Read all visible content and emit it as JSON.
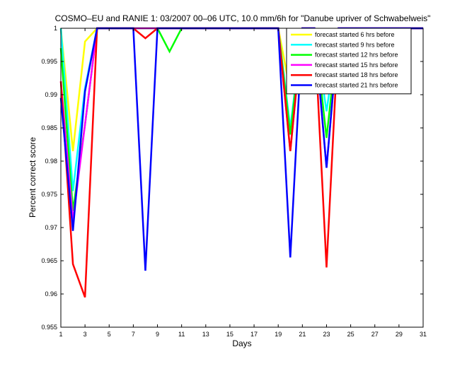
{
  "chart_data": {
    "type": "line",
    "title": "COSMO–EU and RANIE 1: 03/2007 00–06 UTC, 10.0 mm/6h for \"Danube upriver of Schwabelweis\"",
    "xlabel": "Days",
    "ylabel": "Percent correct score",
    "xlim": [
      1,
      31
    ],
    "ylim": [
      0.955,
      1.0
    ],
    "xticks": [
      1,
      3,
      5,
      7,
      9,
      11,
      13,
      15,
      17,
      19,
      21,
      23,
      25,
      27,
      29,
      31
    ],
    "yticks": [
      0.955,
      0.96,
      0.965,
      0.97,
      0.975,
      0.98,
      0.985,
      0.99,
      0.995,
      1
    ],
    "ytick_labels": [
      "0.955",
      "0.96",
      "0.965",
      "0.97",
      "0.975",
      "0.98",
      "0.985",
      "0.99",
      "0.995",
      "1"
    ],
    "grid": false,
    "legend_position": "top-right",
    "x": [
      1,
      2,
      3,
      4,
      5,
      6,
      7,
      8,
      9,
      10,
      11,
      12,
      13,
      14,
      15,
      16,
      17,
      18,
      19,
      20,
      21,
      22,
      23,
      24,
      25,
      26,
      27,
      28,
      29,
      30,
      31
    ],
    "series": [
      {
        "name": "forecast started 6 hrs before",
        "color": "#ffff00",
        "values": [
          1,
          0.9815,
          0.998,
          1,
          1,
          1,
          1,
          1,
          1,
          1,
          1,
          1,
          1,
          1,
          1,
          1,
          1,
          1,
          1,
          0.9905,
          1,
          1,
          0.9945,
          1,
          1,
          1,
          1,
          1,
          1,
          1,
          1
        ]
      },
      {
        "name": "forecast started 9 hrs before",
        "color": "#00ffff",
        "values": [
          1,
          0.9755,
          0.991,
          1,
          1,
          1,
          1,
          1,
          1,
          1,
          1,
          1,
          1,
          1,
          1,
          1,
          1,
          1,
          1,
          0.985,
          1,
          1,
          0.9875,
          1,
          1,
          1,
          1,
          1,
          1,
          1,
          1
        ]
      },
      {
        "name": "forecast started 12 hrs before",
        "color": "#00ff00",
        "values": [
          0.997,
          0.9725,
          0.9855,
          1,
          1,
          1,
          1,
          1,
          1,
          0.9965,
          1,
          1,
          1,
          1,
          1,
          1,
          1,
          1,
          1,
          0.984,
          1,
          1,
          0.9835,
          1,
          1,
          1,
          1,
          1,
          1,
          1,
          1
        ]
      },
      {
        "name": "forecast started 15 hrs before",
        "color": "#ff00ff",
        "values": [
          0.992,
          0.971,
          0.9855,
          1,
          1,
          1,
          1,
          1,
          1,
          1,
          1,
          1,
          1,
          1,
          1,
          1,
          1,
          1,
          1,
          0.9815,
          1,
          1,
          0.979,
          1,
          1,
          1,
          1,
          1,
          1,
          1,
          1
        ]
      },
      {
        "name": "forecast started 18 hrs before",
        "color": "#ff0000",
        "values": [
          0.992,
          0.9645,
          0.9595,
          1,
          1,
          1,
          1,
          0.9985,
          1,
          1,
          1,
          1,
          1,
          1,
          1,
          1,
          1,
          1,
          1,
          0.9815,
          1,
          1,
          0.964,
          1,
          1,
          1,
          1,
          1,
          1,
          1,
          1
        ]
      },
      {
        "name": "forecast started 21 hrs before",
        "color": "#0000ff",
        "values": [
          0.9895,
          0.9695,
          0.9905,
          1,
          1,
          1,
          1,
          0.9635,
          1,
          1,
          1,
          1,
          1,
          1,
          1,
          1,
          1,
          1,
          1,
          0.9655,
          1,
          1,
          0.979,
          1,
          1,
          1,
          1,
          1,
          1,
          1,
          1
        ]
      }
    ]
  }
}
